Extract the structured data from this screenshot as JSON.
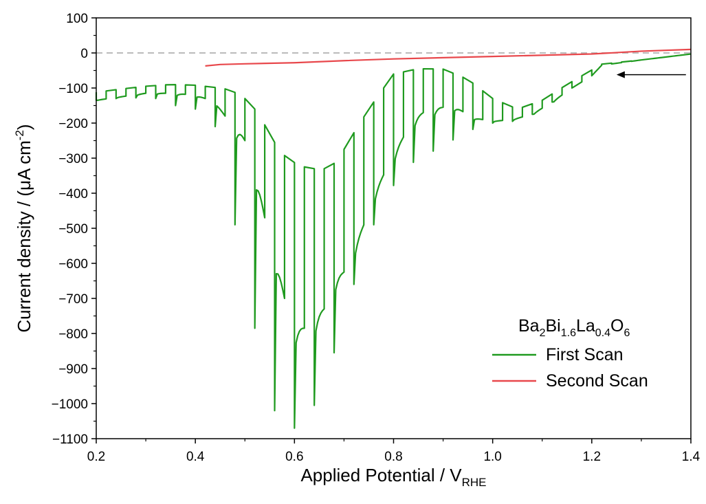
{
  "chart_data": {
    "type": "line",
    "xlabel": "Applied Potential / V",
    "xlabel_sub": "RHE",
    "ylabel": "Current density / (μA cm",
    "ylabel_sup": "-2",
    "ylabel_tail": ")",
    "xlim": [
      0.2,
      1.4
    ],
    "ylim": [
      -1100,
      100
    ],
    "xticks": [
      0.2,
      0.4,
      0.6,
      0.8,
      1.0,
      1.2,
      1.4
    ],
    "xtick_labels": [
      "0.2",
      "0.4",
      "0.6",
      "0.8",
      "1.0",
      "1.2",
      "1.4"
    ],
    "yticks": [
      100,
      0,
      -100,
      -200,
      -300,
      -400,
      -500,
      -600,
      -700,
      -800,
      -900,
      -1000,
      -1100
    ],
    "ytick_labels": [
      "100",
      "0",
      "−100",
      "−200",
      "−300",
      "−400",
      "−500",
      "−600",
      "−700",
      "−800",
      "−900",
      "−1000",
      "−1100"
    ],
    "grid": false,
    "zero_line": {
      "y": 0,
      "style": "dashed",
      "color": "#bbbbbb"
    },
    "legend": {
      "placement": "bottom-right",
      "title_parts": [
        {
          "text": "Ba",
          "sub": false
        },
        {
          "text": "2",
          "sub": true
        },
        {
          "text": "Bi",
          "sub": false
        },
        {
          "text": "1.6",
          "sub": true
        },
        {
          "text": "La",
          "sub": false
        },
        {
          "text": "0.4",
          "sub": true
        },
        {
          "text": "O",
          "sub": false
        },
        {
          "text": "6",
          "sub": true
        }
      ]
    },
    "annotation": {
      "type": "arrow",
      "direction": "left",
      "from": [
        1.39,
        -62
      ],
      "to": [
        1.25,
        -62
      ]
    },
    "series": [
      {
        "name": "First Scan",
        "color": "#1f9a1f",
        "chopped": true,
        "chop_start": 1.4,
        "chop_step": 0.02,
        "baseline": [
          [
            1.4,
            -3
          ],
          [
            1.3,
            -20
          ],
          [
            1.22,
            -32
          ],
          [
            1.15,
            -90
          ],
          [
            1.1,
            -135
          ],
          [
            1.05,
            -160
          ],
          [
            1.0,
            -130
          ],
          [
            0.95,
            -75
          ],
          [
            0.9,
            -46
          ],
          [
            0.85,
            -45
          ],
          [
            0.8,
            -60
          ],
          [
            0.77,
            -120
          ],
          [
            0.75,
            -160
          ],
          [
            0.73,
            -205
          ],
          [
            0.71,
            -250
          ],
          [
            0.69,
            -300
          ],
          [
            0.67,
            -330
          ],
          [
            0.65,
            -330
          ],
          [
            0.63,
            -330
          ],
          [
            0.61,
            -320
          ],
          [
            0.59,
            -305
          ],
          [
            0.57,
            -280
          ],
          [
            0.55,
            -230
          ],
          [
            0.53,
            -180
          ],
          [
            0.51,
            -140
          ],
          [
            0.49,
            -120
          ],
          [
            0.47,
            -105
          ],
          [
            0.45,
            -100
          ],
          [
            0.4,
            -92
          ],
          [
            0.35,
            -90
          ],
          [
            0.3,
            -95
          ],
          [
            0.25,
            -103
          ],
          [
            0.2,
            -112
          ]
        ],
        "light": [
          [
            1.4,
            -3
          ],
          [
            1.3,
            -20
          ],
          [
            1.22,
            -35
          ],
          [
            1.2,
            -65
          ],
          [
            1.16,
            -100
          ],
          [
            1.12,
            -140
          ],
          [
            1.08,
            -175
          ],
          [
            1.04,
            -190
          ],
          [
            1.0,
            -195
          ],
          [
            0.96,
            -185
          ],
          [
            0.92,
            -150
          ],
          [
            0.9,
            -155
          ],
          [
            0.87,
            -160
          ],
          [
            0.84,
            -190
          ],
          [
            0.8,
            -290
          ],
          [
            0.76,
            -405
          ],
          [
            0.74,
            -490
          ],
          [
            0.7,
            -625
          ],
          [
            0.68,
            -645
          ],
          [
            0.66,
            -730
          ],
          [
            0.62,
            -785
          ],
          [
            0.6,
            -785
          ],
          [
            0.58,
            -700
          ],
          [
            0.56,
            -560
          ],
          [
            0.54,
            -470
          ],
          [
            0.52,
            -320
          ],
          [
            0.5,
            -250
          ],
          [
            0.48,
            -200
          ],
          [
            0.46,
            -180
          ],
          [
            0.44,
            -140
          ],
          [
            0.42,
            -130
          ],
          [
            0.4,
            -120
          ],
          [
            0.35,
            -115
          ],
          [
            0.3,
            -115
          ],
          [
            0.25,
            -125
          ],
          [
            0.2,
            -135
          ]
        ],
        "spikes": [
          [
            0.205,
            -135
          ],
          [
            0.245,
            -130
          ],
          [
            0.285,
            -128
          ],
          [
            0.325,
            -130
          ],
          [
            0.365,
            -150
          ],
          [
            0.405,
            -160
          ],
          [
            0.425,
            -200
          ],
          [
            0.445,
            -210
          ],
          [
            0.465,
            -295
          ],
          [
            0.505,
            -490
          ],
          [
            0.545,
            -785
          ],
          [
            0.585,
            -1020
          ],
          [
            0.625,
            -1070
          ],
          [
            0.665,
            -1005
          ],
          [
            0.705,
            -855
          ],
          [
            0.745,
            -660
          ],
          [
            0.785,
            -490
          ],
          [
            0.825,
            -378
          ],
          [
            0.865,
            -312
          ],
          [
            0.905,
            -280
          ],
          [
            0.945,
            -248
          ],
          [
            0.985,
            -218
          ],
          [
            1.025,
            -200
          ],
          [
            1.065,
            -195
          ],
          [
            1.105,
            -175
          ],
          [
            1.145,
            -140
          ]
        ]
      },
      {
        "name": "Second Scan",
        "color": "#e8474b",
        "chopped": false,
        "baseline": [
          [
            1.4,
            10
          ],
          [
            1.3,
            5
          ],
          [
            1.2,
            -3
          ],
          [
            1.0,
            -10
          ],
          [
            0.8,
            -17
          ],
          [
            0.7,
            -22
          ],
          [
            0.6,
            -28
          ],
          [
            0.5,
            -31
          ],
          [
            0.45,
            -33
          ],
          [
            0.42,
            -37
          ]
        ]
      }
    ]
  }
}
